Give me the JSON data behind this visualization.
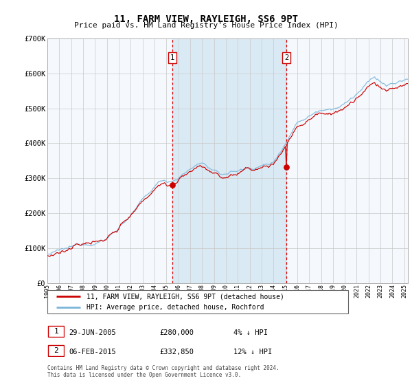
{
  "title": "11, FARM VIEW, RAYLEIGH, SS6 9PT",
  "subtitle": "Price paid vs. HM Land Registry's House Price Index (HPI)",
  "legend_line1": "11, FARM VIEW, RAYLEIGH, SS6 9PT (detached house)",
  "legend_line2": "HPI: Average price, detached house, Rochford",
  "footnote": "Contains HM Land Registry data © Crown copyright and database right 2024.\nThis data is licensed under the Open Government Licence v3.0.",
  "purchase1": {
    "label": "1",
    "date": "29-JUN-2005",
    "price": 280000,
    "note": "4% ↓ HPI"
  },
  "purchase2": {
    "label": "2",
    "date": "06-FEB-2015",
    "price": 332850,
    "note": "12% ↓ HPI"
  },
  "purchase1_x": 2005.49,
  "purchase2_x": 2015.09,
  "hpi_color": "#7ab4d8",
  "price_color": "#cc0000",
  "bg_color": "#ffffff",
  "plot_bg": "#f5f9fd",
  "shade_color": "#daeaf5",
  "grid_color": "#c8c8c8",
  "ylim": [
    0,
    700000
  ],
  "xlim_start": 1995.0,
  "xlim_end": 2025.3
}
